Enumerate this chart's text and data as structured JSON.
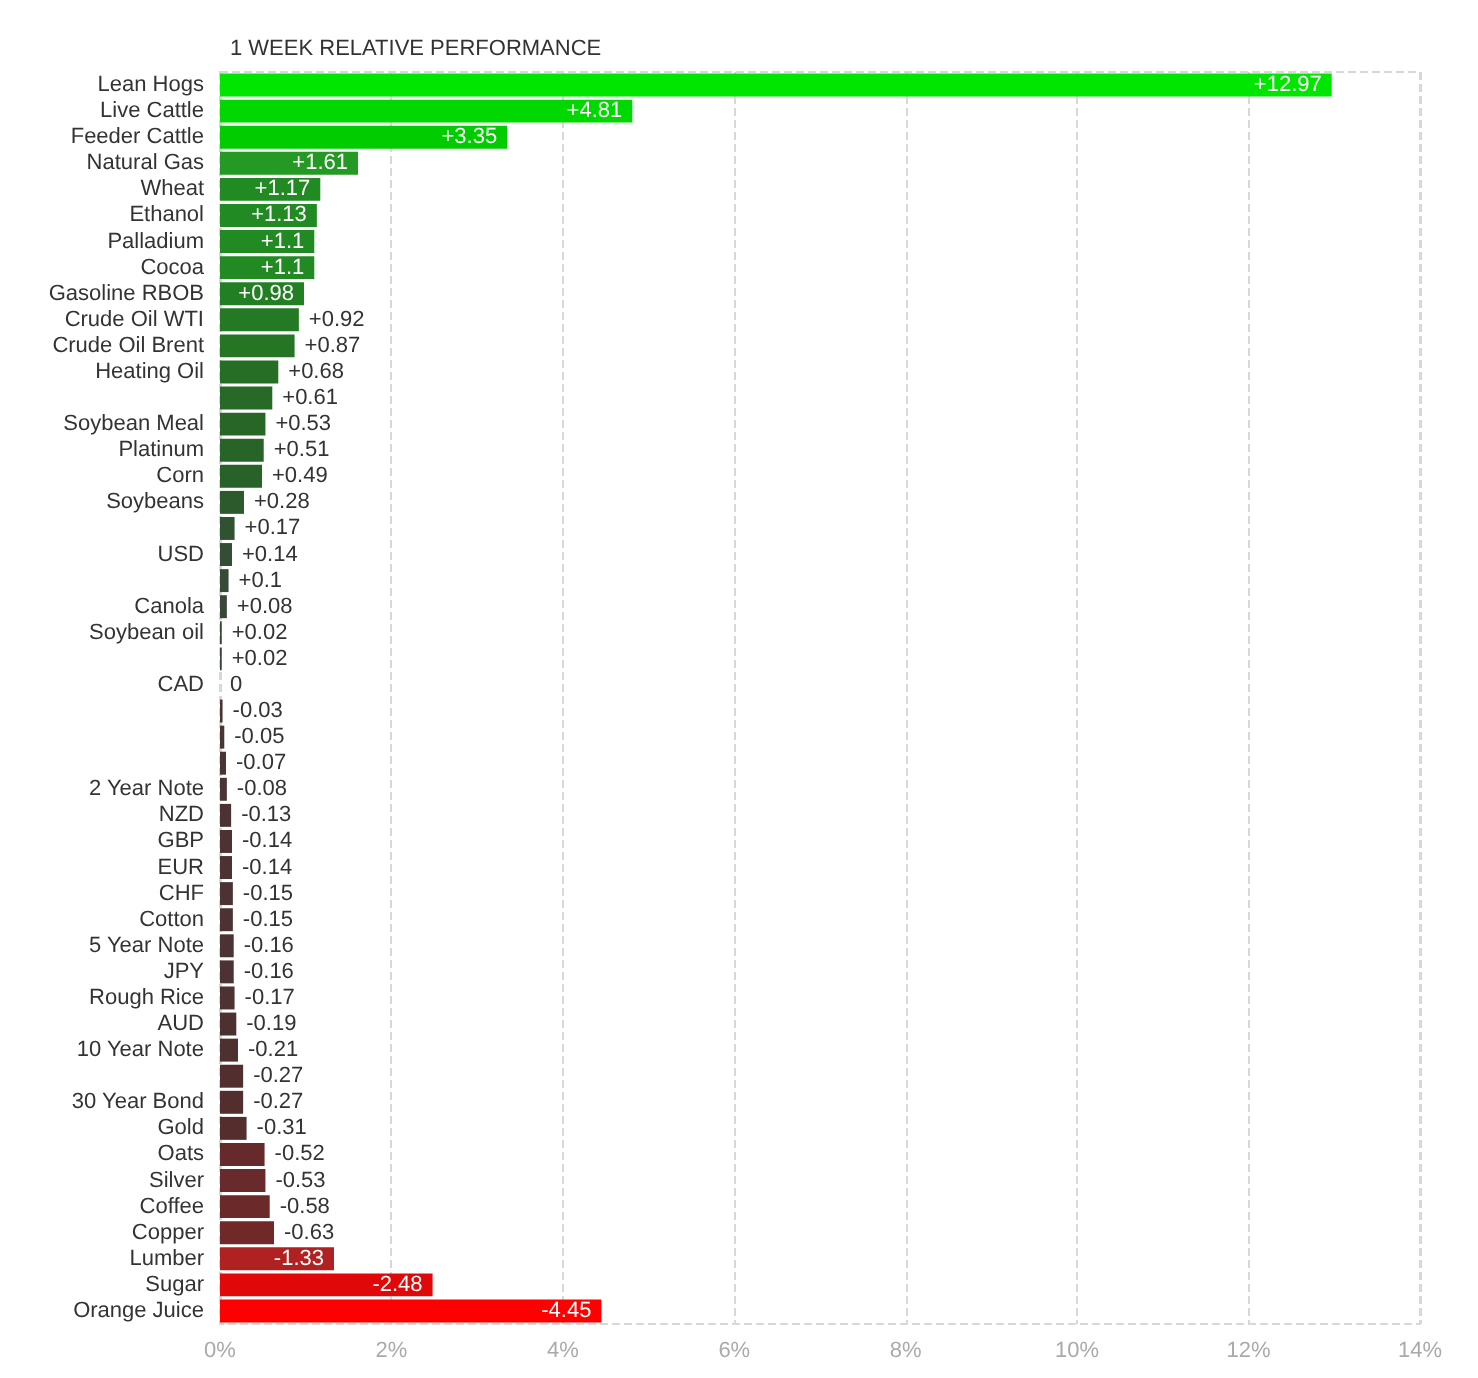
{
  "chart_data": {
    "type": "bar",
    "orientation": "horizontal",
    "title": "1 WEEK RELATIVE PERFORMANCE",
    "categories": [
      "Lean Hogs",
      "Live Cattle",
      "Feeder Cattle",
      "Natural Gas",
      "Wheat",
      "Ethanol",
      "Palladium",
      "Cocoa",
      "Gasoline RBOB",
      "Crude Oil WTI",
      "Crude Oil Brent",
      "Heating Oil",
      null,
      "Soybean Meal",
      "Platinum",
      "Corn",
      "Soybeans",
      null,
      "USD",
      null,
      "Canola",
      "Soybean oil",
      null,
      "CAD",
      null,
      null,
      null,
      "2 Year Note",
      "NZD",
      "GBP",
      "EUR",
      "CHF",
      "Cotton",
      "5 Year Note",
      "JPY",
      "Rough Rice",
      "AUD",
      "10 Year Note",
      null,
      "30 Year Bond",
      "Gold",
      "Oats",
      "Silver",
      "Coffee",
      "Copper",
      "Lumber",
      "Sugar",
      "Orange Juice"
    ],
    "values": [
      12.97,
      4.81,
      3.35,
      1.61,
      1.17,
      1.13,
      1.1,
      1.1,
      0.98,
      0.92,
      0.87,
      0.68,
      0.61,
      0.53,
      0.51,
      0.49,
      0.28,
      0.17,
      0.14,
      0.1,
      0.08,
      0.02,
      0.02,
      0,
      -0.03,
      -0.05,
      -0.07,
      -0.08,
      -0.13,
      -0.14,
      -0.14,
      -0.15,
      -0.15,
      -0.16,
      -0.16,
      -0.17,
      -0.19,
      -0.21,
      -0.27,
      -0.27,
      -0.31,
      -0.52,
      -0.53,
      -0.58,
      -0.63,
      -1.33,
      -2.48,
      -4.45
    ],
    "base": [
      null,
      null,
      null,
      null,
      null,
      null,
      null,
      null,
      null,
      null,
      null,
      null,
      null,
      null,
      null,
      null,
      null,
      null,
      null,
      null,
      null,
      null,
      null,
      null,
      0.03,
      0.05,
      0.07,
      0.08,
      0.13,
      0.14,
      0.14,
      0.15,
      0.15,
      0.16,
      0.16,
      0.17,
      0.19,
      0.21,
      0.27,
      0.27,
      0.31,
      0.52,
      0.53,
      0.58,
      0.63,
      1.33,
      2.48,
      4.45
    ],
    "value_labels": [
      "+12.97",
      "+4.81",
      "+3.35",
      "+1.61",
      "+1.17",
      "+1.13",
      "+1.1",
      "+1.1",
      "+0.98",
      "+0.92",
      "+0.87",
      "+0.68",
      "+0.61",
      "+0.53",
      "+0.51",
      "+0.49",
      "+0.28",
      "+0.17",
      "+0.14",
      "+0.1",
      "+0.08",
      "+0.02",
      "+0.02",
      "0",
      "-0.03",
      "-0.05",
      "-0.07",
      "-0.08",
      "-0.13",
      "-0.14",
      "-0.14",
      "-0.15",
      "-0.15",
      "-0.16",
      "-0.16",
      "-0.17",
      "-0.19",
      "-0.21",
      "-0.27",
      "-0.27",
      "-0.31",
      "-0.52",
      "-0.53",
      "-0.58",
      "-0.63",
      "-1.33",
      "-2.48",
      "-4.45"
    ],
    "colors": [
      "#00e600",
      "#00d800",
      "#00cc00",
      "#249a24",
      "#228a22",
      "#228a22",
      "#228a22",
      "#228a22",
      "#237f23",
      "#247a24",
      "#257525",
      "#266e26",
      "#276a27",
      "#286628",
      "#286428",
      "#296229",
      "#2d5a2d",
      "#315231",
      "#334e33",
      "#354b35",
      "#374837",
      "#394539",
      "#3a433a",
      "#3c3c3c",
      "#4a3535",
      "#4a3535",
      "#4a3434",
      "#4a3434",
      "#4c3232",
      "#4c3232",
      "#4c3232",
      "#4c3232",
      "#4c3232",
      "#4c3232",
      "#4c3232",
      "#4c3232",
      "#4d3131",
      "#4e3030",
      "#522e2e",
      "#522e2e",
      "#552d2d",
      "#672a2a",
      "#682a2a",
      "#6c2929",
      "#702828",
      "#b02222",
      "#e00808",
      "#ff0000"
    ],
    "xlim": [
      0,
      14
    ],
    "xticks": [
      {
        "value": 0,
        "label": "0%"
      },
      {
        "value": 2,
        "label": "2%"
      },
      {
        "value": 4,
        "label": "4%"
      },
      {
        "value": 6,
        "label": "6%"
      },
      {
        "value": 8,
        "label": "8%"
      },
      {
        "value": 10,
        "label": "10%"
      },
      {
        "value": 12,
        "label": "12%"
      },
      {
        "value": 14,
        "label": "14%"
      }
    ],
    "grid": "x"
  }
}
